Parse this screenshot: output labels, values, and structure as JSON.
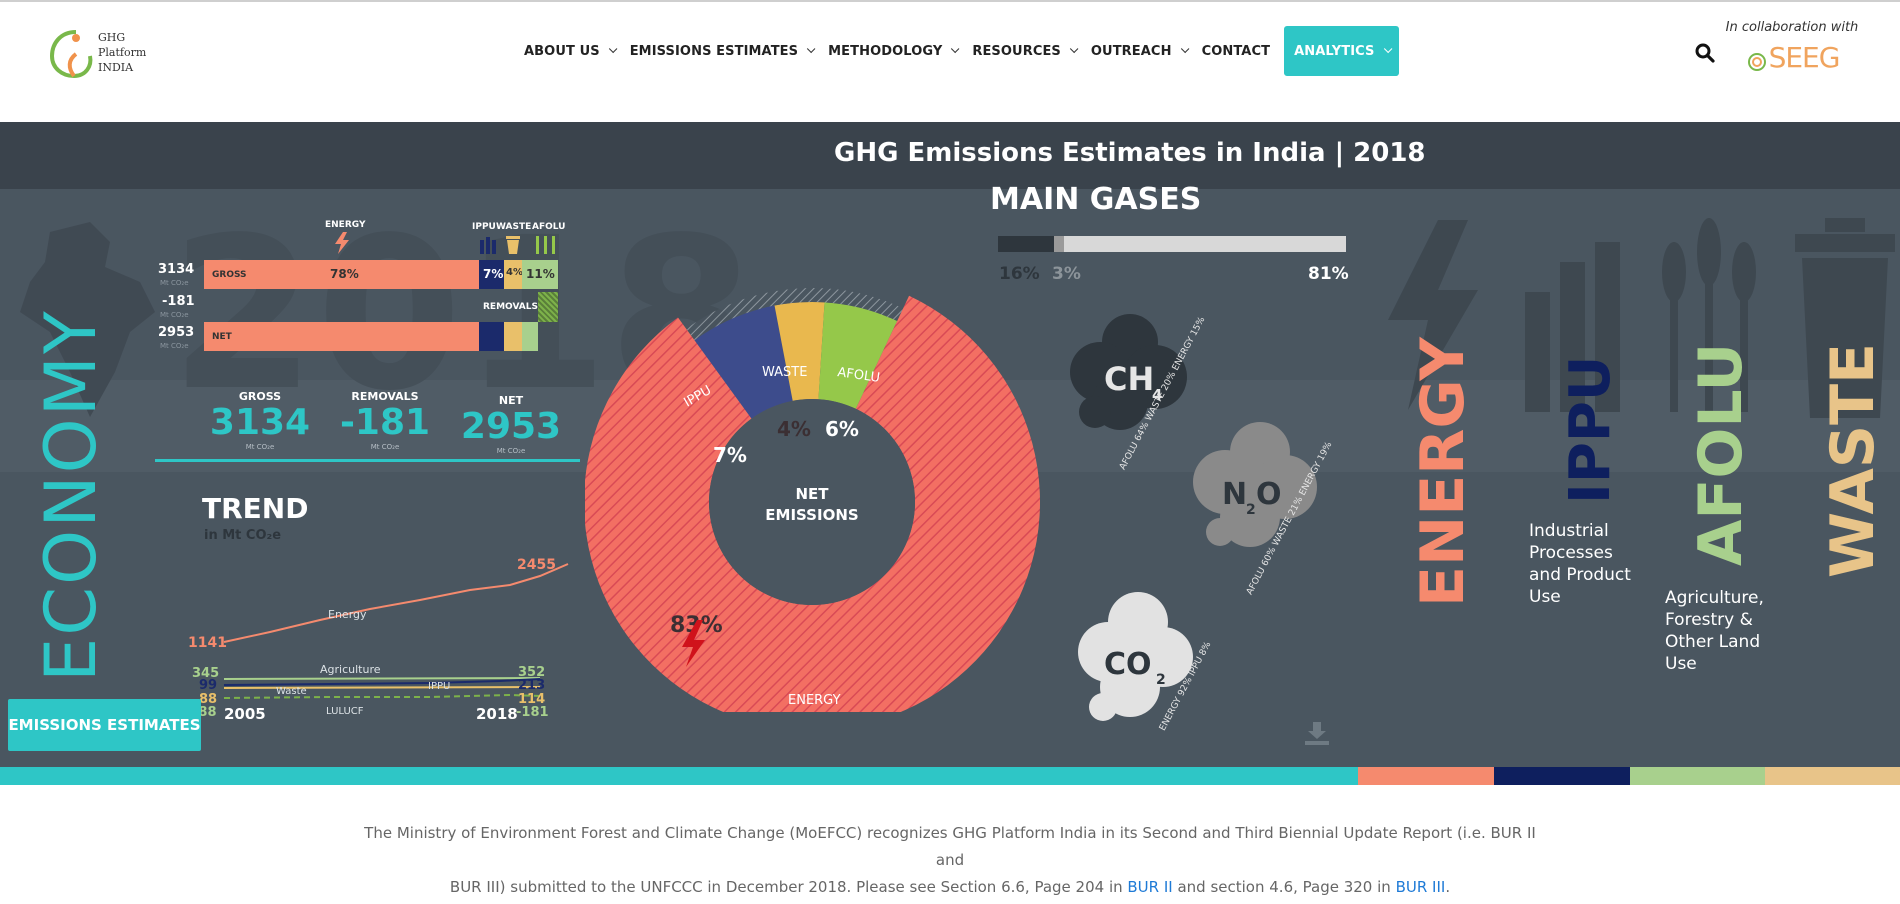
{
  "header": {
    "logo_text": [
      "GHG",
      "Platform",
      "INDIA"
    ],
    "nav": [
      {
        "label": "ABOUT US",
        "has_menu": true
      },
      {
        "label": "EMISSIONS ESTIMATES",
        "has_menu": true
      },
      {
        "label": "METHODOLOGY",
        "has_menu": true
      },
      {
        "label": "RESOURCES",
        "has_menu": true
      },
      {
        "label": "OUTREACH",
        "has_menu": true
      },
      {
        "label": "CONTACT",
        "has_menu": false
      },
      {
        "label": "ANALYTICS",
        "has_menu": true,
        "active": true
      }
    ],
    "collab_label": "In collaboration with",
    "collab_logo": "SEEG"
  },
  "hero": {
    "title": "GHG Emissions Estimates in India | 2018",
    "economy_label": "ECONOMY",
    "bars": {
      "header_labels": {
        "energy": "ENERGY",
        "ippu": "IPPU",
        "waste": "WASTE",
        "afolu": "AFOLU"
      },
      "gross_value": "3134",
      "removals_value": "-181",
      "net_value": "2953",
      "unit": "Mt CO₂e",
      "gross_label": "GROSS",
      "net_label": "NET",
      "removals_label": "REMOVALS",
      "gross_shares": {
        "energy": "78%",
        "ippu": "7%",
        "waste": "4%",
        "afolu": "11%"
      }
    },
    "totals": [
      {
        "label": "GROSS",
        "value": "3134",
        "unit": "Mt CO₂e"
      },
      {
        "label": "REMOVALS",
        "value": "-181",
        "unit": "Mt CO₂e"
      },
      {
        "label": "NET",
        "value": "2953",
        "unit": "Mt CO₂e"
      }
    ],
    "trend": {
      "title": "TREND",
      "subtitle": "in Mt CO₂e",
      "start_year": "2005",
      "end_year": "2018",
      "series": [
        {
          "name": "Energy",
          "start": "1141",
          "end": "2455",
          "color": "#f58a6e"
        },
        {
          "name": "Agriculture",
          "start": "345",
          "end": "352",
          "color": "#9fd27a"
        },
        {
          "name": "IPPU",
          "start": "99",
          "end": "213",
          "color": "#1b2a6b"
        },
        {
          "name": "Waste",
          "start": "88",
          "end": "114",
          "color": "#e9c06a"
        },
        {
          "name": "LULUCF",
          "start": "-88",
          "end": "-181",
          "color": "#7db24a"
        }
      ]
    },
    "donut": {
      "center": [
        "NET",
        "EMISSIONS"
      ],
      "slices": [
        {
          "name": "ENERGY",
          "value": 83,
          "label": "83%",
          "color": "#f36f63"
        },
        {
          "name": "IPPU",
          "value": 7,
          "label": "7%",
          "color": "#3d4c8c"
        },
        {
          "name": "WASTE",
          "value": 4,
          "label": "4%",
          "color": "#e9b84e"
        },
        {
          "name": "AFOLU",
          "value": 6,
          "label": "6%",
          "color": "#95c84a"
        }
      ]
    },
    "main_gases": {
      "title": "MAIN GASES",
      "shares": [
        {
          "label": "16%",
          "value": 16,
          "color": "#2e363d"
        },
        {
          "label": "3%",
          "value": 3,
          "color": "#9a9a9a"
        },
        {
          "label": "81%",
          "value": 81,
          "color": "#d8d8d8"
        }
      ],
      "ch4": {
        "name": "CH",
        "sub": "4",
        "split": "AFOLU 64%  WASTE 20%  ENERGY 15%"
      },
      "n2o": {
        "name": "N",
        "sub": "2",
        "tail": "O",
        "split": "AFOLU 60%  WASTE 21%  ENERGY 19%"
      },
      "co2": {
        "name": "CO",
        "sub": "2",
        "split": "ENERGY 92%  IPPU 8%"
      }
    },
    "sectors": {
      "energy": "ENERGY",
      "ippu": "IPPU",
      "ippu_desc": [
        "Industrial",
        "Processes",
        "and Product",
        "Use"
      ],
      "afolu": "AFOLU",
      "afolu_desc": [
        "Agriculture,",
        "Forestry &",
        "Other Land",
        "Use"
      ],
      "waste": "WASTE"
    },
    "button": "EMISSIONS ESTIMATES",
    "colors": {
      "teal": "#2ec6c6",
      "energy": "#f58a6e",
      "ippu": "#0e1f5e",
      "afolu": "#a8d08d",
      "waste": "#e8c489",
      "bg": "#4a5660"
    }
  },
  "footer": {
    "text1": "The Ministry of Environment Forest and Climate Change (MoEFCC) recognizes GHG Platform India in its Second and Third Biennial Update Report (i.e. BUR II and",
    "text2a": "BUR III) submitted to the UNFCCC in December 2018. Please see Section 6.6, Page 204 in ",
    "link1": "BUR II",
    "text2b": " and section 4.6, Page 320 in ",
    "link2": "BUR III",
    "text2c": "."
  }
}
